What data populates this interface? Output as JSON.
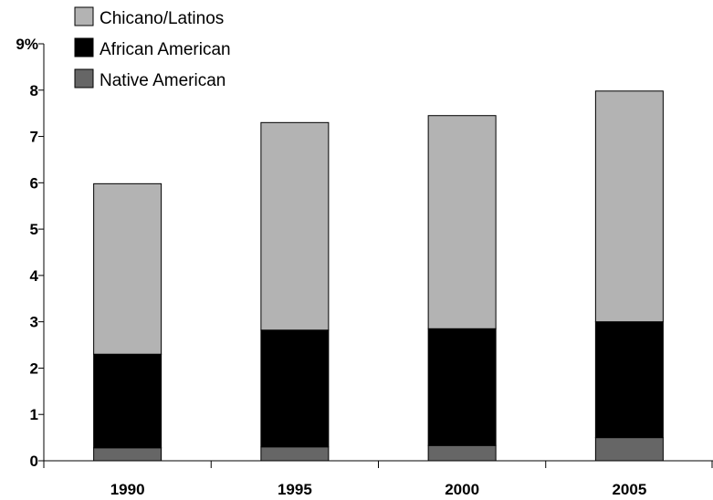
{
  "chart_data": {
    "type": "bar",
    "stacked": true,
    "categories": [
      "1990",
      "1995",
      "2000",
      "2005"
    ],
    "series": [
      {
        "name": "Native American",
        "values": [
          0.28,
          0.3,
          0.33,
          0.5
        ],
        "color": "#666666"
      },
      {
        "name": "African American",
        "values": [
          2.02,
          2.52,
          2.52,
          2.5
        ],
        "color": "#000000"
      },
      {
        "name": "Chicano/Latinos",
        "values": [
          3.68,
          4.48,
          4.6,
          4.98
        ],
        "color": "#b3b3b3"
      }
    ],
    "legend_order": [
      "Chicano/Latinos",
      "African American",
      "Native American"
    ],
    "y_ticks": [
      "0",
      "1",
      "2",
      "3",
      "4",
      "5",
      "6",
      "7",
      "8",
      "9%"
    ],
    "ylim": [
      0,
      9
    ],
    "grid": false,
    "legend_position": "top-left"
  }
}
